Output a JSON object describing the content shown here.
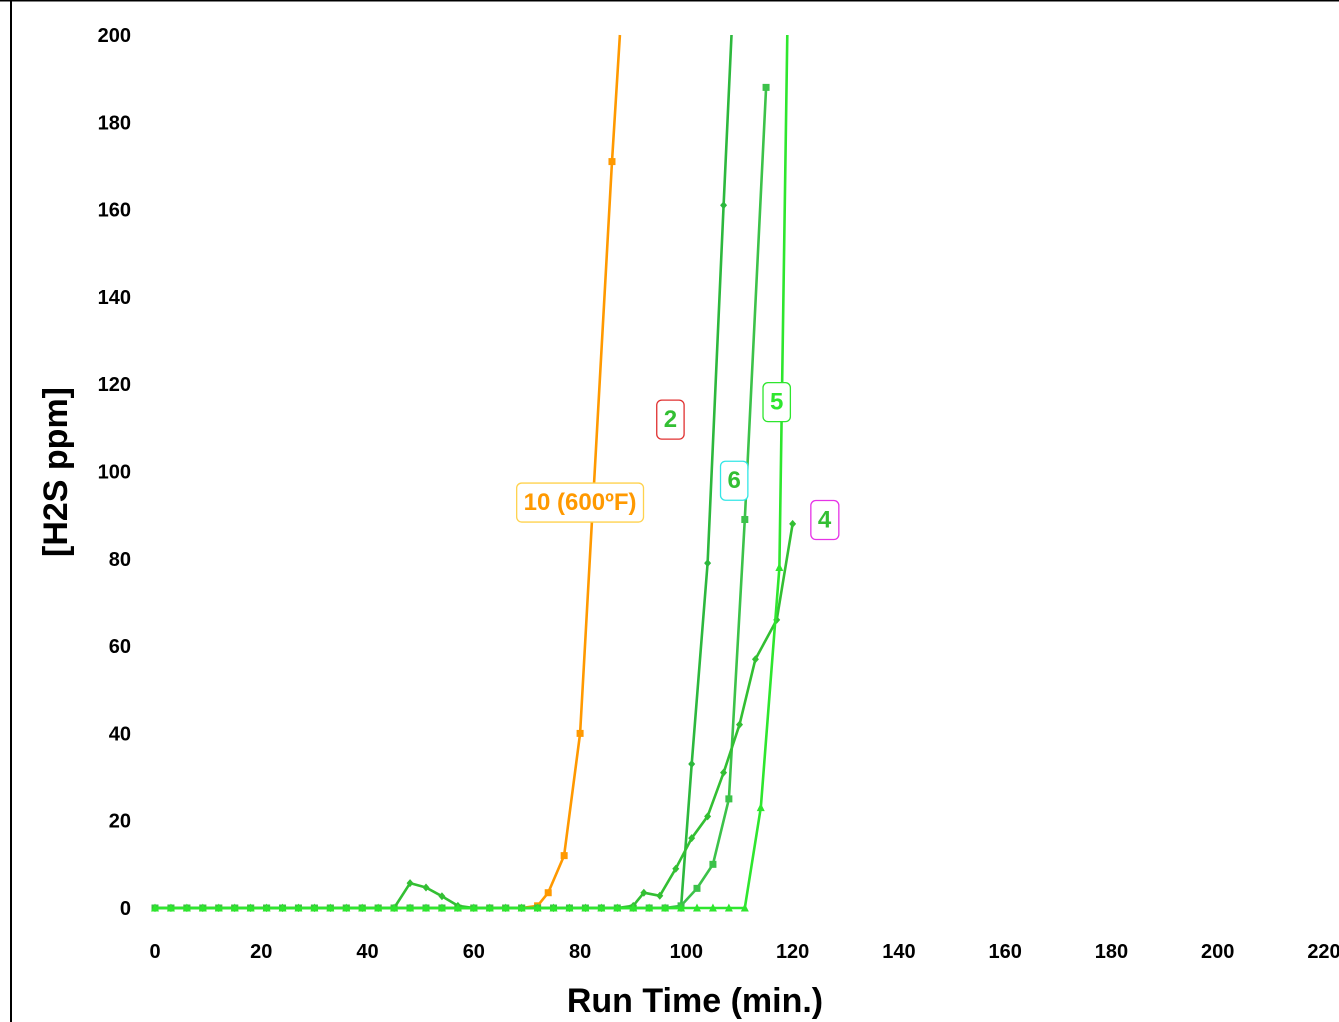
{
  "chart_data": {
    "type": "line",
    "title": "",
    "xlabel": "Run Time (min.)",
    "ylabel": "[H2S ppm]",
    "xlim": [
      0,
      220
    ],
    "ylim": [
      0,
      200
    ],
    "x_ticks": [
      0,
      20,
      40,
      60,
      80,
      100,
      120,
      140,
      160,
      180,
      200,
      220
    ],
    "y_ticks": [
      0,
      20,
      40,
      60,
      80,
      100,
      120,
      140,
      160,
      180,
      200
    ],
    "grid": false,
    "legend": "none",
    "series": [
      {
        "name": "10 (600ºF)",
        "color": "#ff9900",
        "marker": "square",
        "points": [
          [
            0,
            0
          ],
          [
            3,
            0
          ],
          [
            6,
            0
          ],
          [
            9,
            0
          ],
          [
            12,
            0
          ],
          [
            15,
            0
          ],
          [
            18,
            0
          ],
          [
            21,
            0
          ],
          [
            24,
            0
          ],
          [
            27,
            0
          ],
          [
            30,
            0
          ],
          [
            33,
            0
          ],
          [
            36,
            0
          ],
          [
            39,
            0
          ],
          [
            42,
            0
          ],
          [
            45,
            0
          ],
          [
            48,
            0
          ],
          [
            51,
            0
          ],
          [
            54,
            0
          ],
          [
            57,
            0
          ],
          [
            60,
            0
          ],
          [
            63,
            0
          ],
          [
            66,
            0
          ],
          [
            69,
            0
          ],
          [
            72,
            0.5
          ],
          [
            74,
            3.5
          ],
          [
            77,
            12
          ],
          [
            80,
            40
          ],
          [
            86,
            171
          ],
          [
            87.5,
            200
          ]
        ]
      },
      {
        "name": "2",
        "color": "#2db83d",
        "marker": "diamond",
        "points": [
          [
            0,
            0
          ],
          [
            3,
            0
          ],
          [
            6,
            0
          ],
          [
            9,
            0
          ],
          [
            12,
            0
          ],
          [
            15,
            0
          ],
          [
            18,
            0
          ],
          [
            21,
            0
          ],
          [
            24,
            0
          ],
          [
            27,
            0
          ],
          [
            30,
            0
          ],
          [
            33,
            0
          ],
          [
            36,
            0
          ],
          [
            39,
            0
          ],
          [
            42,
            0
          ],
          [
            45,
            0
          ],
          [
            48,
            0
          ],
          [
            51,
            0
          ],
          [
            54,
            0
          ],
          [
            57,
            0
          ],
          [
            60,
            0
          ],
          [
            63,
            0
          ],
          [
            66,
            0
          ],
          [
            69,
            0
          ],
          [
            72,
            0
          ],
          [
            75,
            0
          ],
          [
            78,
            0
          ],
          [
            81,
            0
          ],
          [
            84,
            0
          ],
          [
            87,
            0
          ],
          [
            90,
            0
          ],
          [
            93,
            0
          ],
          [
            96,
            0
          ],
          [
            99,
            0
          ],
          [
            101,
            33
          ],
          [
            104,
            79
          ],
          [
            107,
            161
          ],
          [
            108.5,
            200
          ]
        ]
      },
      {
        "name": "6",
        "color": "#3cc24a",
        "marker": "square",
        "points": [
          [
            0,
            0
          ],
          [
            3,
            0
          ],
          [
            6,
            0
          ],
          [
            9,
            0
          ],
          [
            12,
            0
          ],
          [
            15,
            0
          ],
          [
            18,
            0
          ],
          [
            21,
            0
          ],
          [
            24,
            0
          ],
          [
            27,
            0
          ],
          [
            30,
            0
          ],
          [
            33,
            0
          ],
          [
            36,
            0
          ],
          [
            39,
            0
          ],
          [
            42,
            0
          ],
          [
            45,
            0
          ],
          [
            48,
            0
          ],
          [
            51,
            0
          ],
          [
            54,
            0
          ],
          [
            57,
            0
          ],
          [
            60,
            0
          ],
          [
            63,
            0
          ],
          [
            66,
            0
          ],
          [
            69,
            0
          ],
          [
            72,
            0
          ],
          [
            75,
            0
          ],
          [
            78,
            0
          ],
          [
            81,
            0
          ],
          [
            84,
            0
          ],
          [
            87,
            0
          ],
          [
            90,
            0
          ],
          [
            93,
            0
          ],
          [
            96,
            0
          ],
          [
            99,
            0.5
          ],
          [
            102,
            4.5
          ],
          [
            105,
            10
          ],
          [
            108,
            25
          ],
          [
            111,
            89
          ],
          [
            115,
            188
          ]
        ]
      },
      {
        "name": "4",
        "color": "#33bf33",
        "marker": "diamond",
        "points": [
          [
            0,
            0
          ],
          [
            3,
            0
          ],
          [
            6,
            0
          ],
          [
            9,
            0
          ],
          [
            12,
            0
          ],
          [
            15,
            0
          ],
          [
            18,
            0
          ],
          [
            21,
            0
          ],
          [
            24,
            0
          ],
          [
            27,
            0
          ],
          [
            30,
            0
          ],
          [
            33,
            0
          ],
          [
            36,
            0
          ],
          [
            39,
            0
          ],
          [
            42,
            0
          ],
          [
            45,
            0
          ],
          [
            48,
            5.7
          ],
          [
            51,
            4.7
          ],
          [
            54,
            2.7
          ],
          [
            57,
            0.5
          ],
          [
            60,
            0
          ],
          [
            63,
            0
          ],
          [
            66,
            0
          ],
          [
            69,
            0
          ],
          [
            72,
            0
          ],
          [
            75,
            0
          ],
          [
            78,
            0
          ],
          [
            81,
            0
          ],
          [
            84,
            0
          ],
          [
            87,
            0
          ],
          [
            90,
            0.5
          ],
          [
            92,
            3.5
          ],
          [
            95,
            2.8
          ],
          [
            98,
            9
          ],
          [
            101,
            16
          ],
          [
            104,
            21
          ],
          [
            107,
            31
          ],
          [
            110,
            42
          ],
          [
            113,
            57
          ],
          [
            117,
            66
          ],
          [
            120,
            88
          ]
        ]
      },
      {
        "name": "5",
        "color": "#2ee62e",
        "marker": "triangle",
        "points": [
          [
            0,
            0
          ],
          [
            3,
            0
          ],
          [
            6,
            0
          ],
          [
            9,
            0
          ],
          [
            12,
            0
          ],
          [
            15,
            0
          ],
          [
            18,
            0
          ],
          [
            21,
            0
          ],
          [
            24,
            0
          ],
          [
            27,
            0
          ],
          [
            30,
            0
          ],
          [
            33,
            0
          ],
          [
            36,
            0
          ],
          [
            39,
            0
          ],
          [
            42,
            0
          ],
          [
            45,
            0
          ],
          [
            48,
            0
          ],
          [
            51,
            0
          ],
          [
            54,
            0
          ],
          [
            57,
            0
          ],
          [
            60,
            0
          ],
          [
            63,
            0
          ],
          [
            66,
            0
          ],
          [
            69,
            0
          ],
          [
            72,
            0
          ],
          [
            75,
            0
          ],
          [
            78,
            0
          ],
          [
            81,
            0
          ],
          [
            84,
            0
          ],
          [
            87,
            0
          ],
          [
            90,
            0
          ],
          [
            93,
            0
          ],
          [
            96,
            0
          ],
          [
            99,
            0
          ],
          [
            102,
            0
          ],
          [
            105,
            0
          ],
          [
            108,
            0
          ],
          [
            111,
            0
          ],
          [
            114,
            23
          ],
          [
            117.5,
            78
          ],
          [
            119,
            200
          ]
        ]
      }
    ],
    "annotations": [
      {
        "text": "10 (600ºF)",
        "x": 80,
        "y": 93,
        "text_color": "#ff9900",
        "border_color": "#ffd24d"
      },
      {
        "text": "2",
        "x": 97,
        "y": 112,
        "text_color": "#33bf33",
        "border_color": "#e03030"
      },
      {
        "text": "6",
        "x": 109,
        "y": 98,
        "text_color": "#33bf33",
        "border_color": "#33e6e6"
      },
      {
        "text": "5",
        "x": 117,
        "y": 116,
        "text_color": "#2ee62e",
        "border_color": "#2ee62e"
      },
      {
        "text": "4",
        "x": 126,
        "y": 89,
        "text_color": "#33bf33",
        "border_color": "#e633e6"
      }
    ]
  }
}
